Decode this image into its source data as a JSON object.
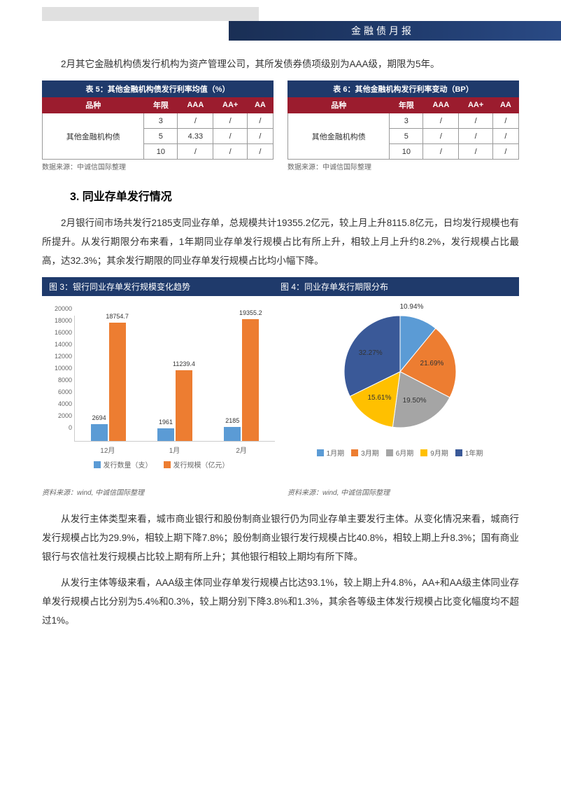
{
  "header": {
    "title": "金融债月报"
  },
  "para1": "2月其它金融机构债发行机构为资产管理公司，其所发债券债项级别为AAA级，期限为5年。",
  "table5": {
    "title": "表 5：其他金融机构债发行利率均值（%）",
    "cols": [
      "品种",
      "年限",
      "AAA",
      "AA+",
      "AA"
    ],
    "rowlabel": "其他金融机构债",
    "rows": [
      [
        "3",
        "/",
        "/",
        "/"
      ],
      [
        "5",
        "4.33",
        "/",
        "/"
      ],
      [
        "10",
        "/",
        "/",
        "/"
      ]
    ],
    "source": "数据来源：中诚信国际整理"
  },
  "table6": {
    "title": "表 6：其他金融机构发行利率变动（BP）",
    "cols": [
      "品种",
      "年限",
      "AAA",
      "AA+",
      "AA"
    ],
    "rowlabel": "其他金融机构债",
    "rows": [
      [
        "3",
        "/",
        "/",
        "/"
      ],
      [
        "5",
        "/",
        "/",
        "/"
      ],
      [
        "10",
        "/",
        "/",
        "/"
      ]
    ],
    "source": "数据来源：中诚信国际整理"
  },
  "section_heading": "3. 同业存单发行情况",
  "para2": "2月银行间市场共发行2185支同业存单，总规模共计19355.2亿元，较上月上升8115.8亿元，日均发行规模也有所提升。从发行期限分布来看，1年期同业存单发行规模占比有所上升，相较上月上升约8.2%，发行规模占比最高，达32.3%；其余发行期限的同业存单发行规模占比均小幅下降。",
  "chart3": {
    "title": "图 3：银行同业存单发行规模变化趋势",
    "type": "bar",
    "categories": [
      "12月",
      "1月",
      "2月"
    ],
    "series": [
      {
        "name": "发行数量（支）",
        "color": "#5b9bd5",
        "values": [
          2694,
          1961,
          2185
        ]
      },
      {
        "name": "发行规模（亿元）",
        "color": "#ed7d31",
        "values": [
          18754.7,
          11239.4,
          19355.2
        ]
      }
    ],
    "ymax": 20000,
    "ytick_step": 2000,
    "source": "资料来源：wind, 中诚信国际整理"
  },
  "chart4": {
    "title": "图 4：同业存单发行期限分布",
    "type": "pie",
    "slices": [
      {
        "label": "1月期",
        "value": 10.94,
        "color": "#5b9bd5",
        "display": "10.94%"
      },
      {
        "label": "3月期",
        "value": 21.69,
        "color": "#ed7d31",
        "display": "21.69%"
      },
      {
        "label": "6月期",
        "value": 19.5,
        "color": "#a5a5a5",
        "display": "19.50%"
      },
      {
        "label": "9月期",
        "value": 15.61,
        "color": "#ffc000",
        "display": "15.61%"
      },
      {
        "label": "1年期",
        "value": 32.27,
        "color": "#3a5998",
        "display": "32.27%"
      }
    ],
    "source": "资料来源：wind, 中诚信国际整理"
  },
  "para3": "从发行主体类型来看，城市商业银行和股份制商业银行仍为同业存单主要发行主体。从变化情况来看，城商行发行规模占比为29.9%，相较上期下降7.8%；股份制商业银行发行规模占比40.8%，相较上期上升8.3%；国有商业银行与农信社发行规模占比较上期有所上升；其他银行相较上期均有所下降。",
  "para4": "从发行主体等级来看，AAA级主体同业存单发行规模占比达93.1%，较上期上升4.8%，AA+和AA级主体同业存单发行规模占比分别为5.4%和0.3%，较上期分别下降3.8%和1.3%，其余各等级主体发行规模占比变化幅度均不超过1%。"
}
